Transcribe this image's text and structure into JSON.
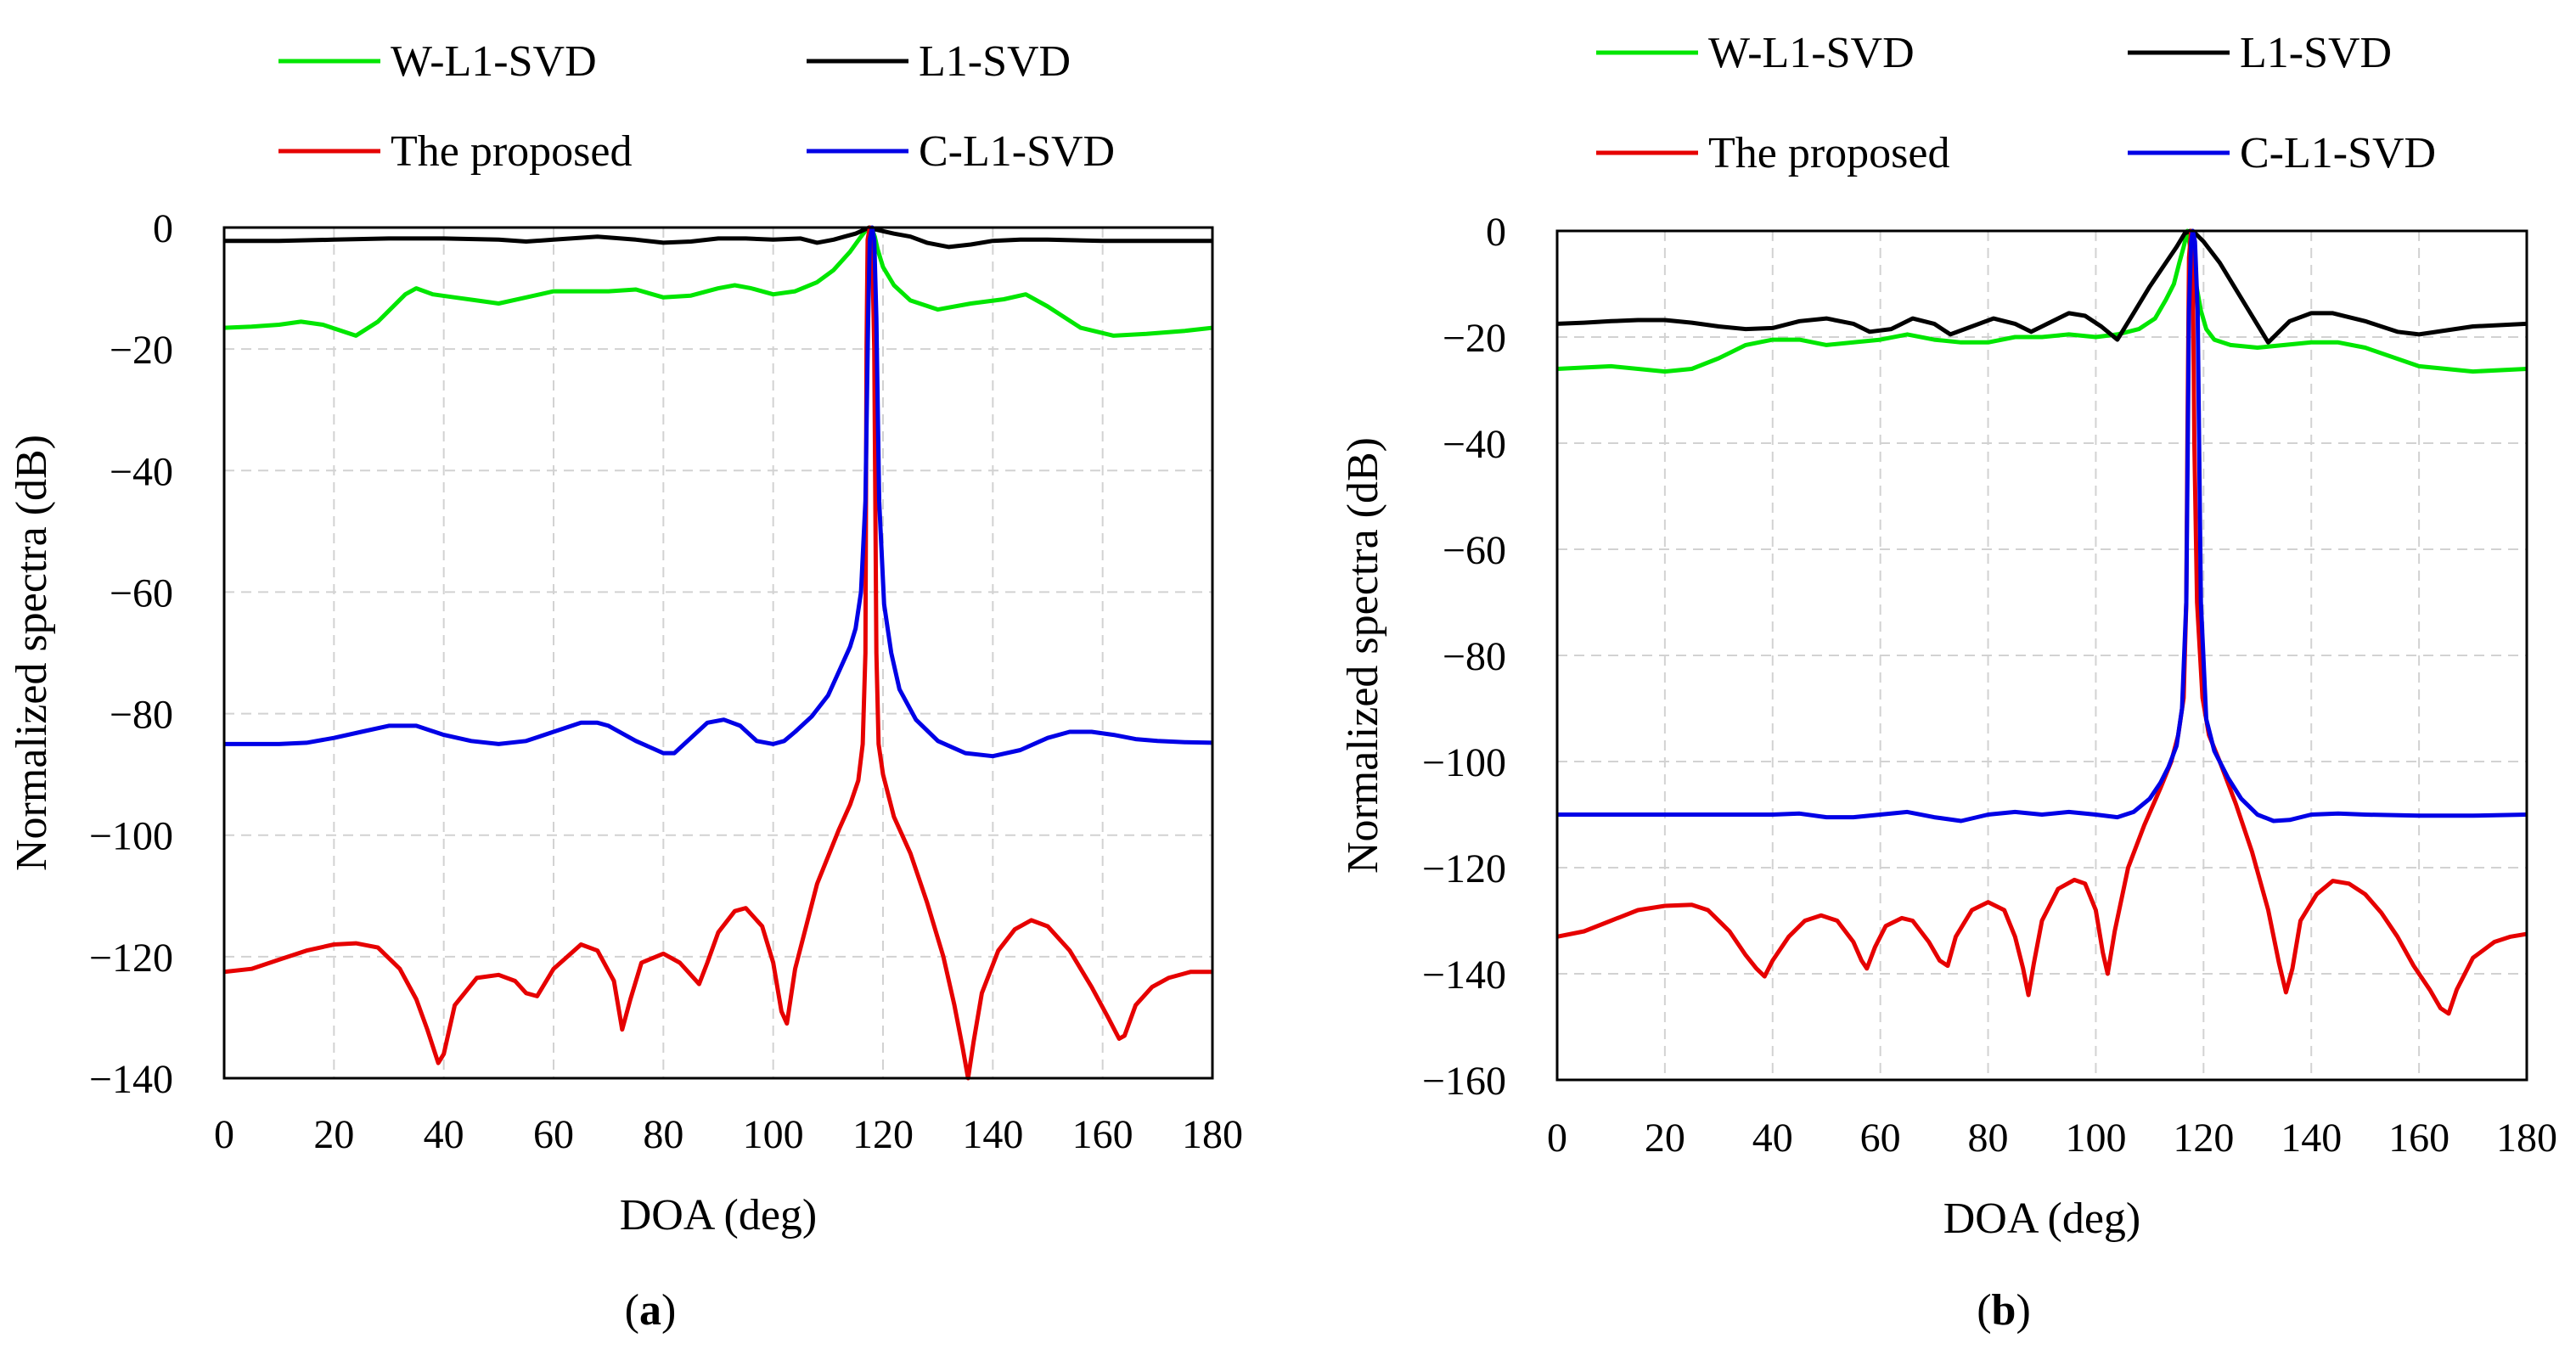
{
  "figure": {
    "colors": {
      "w_l1_svd": "#00e600",
      "l1_svd": "#000000",
      "proposed": "#e60000",
      "c_l1_svd": "#0000e6"
    }
  },
  "chart_data": [
    {
      "type": "line",
      "panel_label_open": "(",
      "panel_label_letter": "a",
      "panel_label_close": ")",
      "xlabel": "DOA (deg)",
      "ylabel": "Normalized spectra (dB)",
      "xlim": [
        0,
        180
      ],
      "ylim": [
        -140,
        0
      ],
      "x_ticks": [
        0,
        20,
        40,
        60,
        80,
        100,
        120,
        140,
        160,
        180
      ],
      "y_ticks": [
        0,
        -20,
        -40,
        -60,
        -80,
        -100,
        -120,
        -140
      ],
      "grid": true,
      "legend": [
        "W-L1-SVD",
        "L1-SVD",
        "The proposed",
        "C-L1-SVD"
      ],
      "series": [
        {
          "name": "W-L1-SVD",
          "color": "#00e600",
          "x": [
            0,
            5,
            10,
            14,
            18,
            24,
            28,
            33,
            35,
            38,
            42,
            46,
            50,
            55,
            60,
            65,
            70,
            75,
            80,
            85,
            90,
            93,
            96,
            100,
            104,
            108,
            111,
            114,
            116,
            117,
            117.5,
            118,
            118.5,
            119,
            120,
            122,
            125,
            130,
            136,
            142,
            146,
            150,
            156,
            162,
            168,
            175,
            180
          ],
          "y": [
            -16.5,
            -16.3,
            -16,
            -15.5,
            -16,
            -17.8,
            -15.5,
            -11,
            -10,
            -11,
            -11.5,
            -12,
            -12.5,
            -11.5,
            -10.5,
            -10.5,
            -10.5,
            -10.2,
            -11.5,
            -11.2,
            -10,
            -9.5,
            -10,
            -11,
            -10.5,
            -9,
            -7,
            -4,
            -1.5,
            -0.3,
            0,
            -0.3,
            -1.5,
            -3.5,
            -6.5,
            -9.5,
            -12,
            -13.5,
            -12.5,
            -11.8,
            -11,
            -13,
            -16.5,
            -17.8,
            -17.5,
            -17,
            -16.5
          ]
        },
        {
          "name": "L1-SVD",
          "color": "#000000",
          "x": [
            0,
            10,
            20,
            30,
            40,
            50,
            55,
            60,
            68,
            75,
            80,
            85,
            90,
            95,
            100,
            105,
            108,
            111,
            113,
            115,
            116.5,
            117.5,
            118.5,
            120,
            122,
            125,
            128,
            132,
            136,
            140,
            145,
            150,
            160,
            170,
            180
          ],
          "y": [
            -2.2,
            -2.2,
            -2,
            -1.8,
            -1.8,
            -2,
            -2.3,
            -2,
            -1.5,
            -2,
            -2.5,
            -2.3,
            -1.8,
            -1.8,
            -2,
            -1.8,
            -2.5,
            -2,
            -1.5,
            -1,
            -0.4,
            0,
            -0.3,
            -0.6,
            -1,
            -1.5,
            -2.5,
            -3.2,
            -2.8,
            -2.2,
            -2,
            -2,
            -2.2,
            -2.2,
            -2.2
          ]
        },
        {
          "name": "The proposed",
          "color": "#e60000",
          "x": [
            0,
            5,
            10,
            15,
            20,
            24,
            28,
            32,
            35,
            37,
            39,
            40,
            42,
            46,
            50,
            53,
            55,
            57,
            60,
            65,
            68,
            71,
            72.5,
            74,
            76,
            80,
            83,
            85,
            86.5,
            88,
            90,
            93,
            95,
            98,
            100,
            101.5,
            102.5,
            104,
            108,
            112,
            114,
            115.5,
            116.3,
            116.8,
            117,
            117.2,
            117.6,
            118,
            118.4,
            118.8,
            119.2,
            120,
            122,
            125,
            128,
            131,
            133,
            134.5,
            135.5,
            136.5,
            138,
            141,
            144,
            147,
            150,
            154,
            158,
            161,
            163,
            164,
            166,
            169,
            172,
            176,
            180
          ],
          "y": [
            -122.5,
            -122,
            -120.5,
            -119,
            -118,
            -117.8,
            -118.5,
            -122,
            -127,
            -132,
            -137.5,
            -136,
            -128,
            -123.5,
            -123,
            -124,
            -126,
            -126.5,
            -122,
            -118,
            -119,
            -124,
            -132,
            -127,
            -121,
            -119.5,
            -121,
            -123,
            -124.5,
            -121,
            -116,
            -112.5,
            -112,
            -115,
            -121,
            -129,
            -131,
            -122,
            -108,
            -99,
            -95,
            -91,
            -85,
            -70,
            -20,
            -2,
            0,
            -2,
            -20,
            -70,
            -85,
            -90,
            -97,
            -103,
            -111,
            -120,
            -128,
            -135,
            -140,
            -134,
            -126,
            -119,
            -115.5,
            -114,
            -115,
            -119,
            -125,
            -130,
            -133.5,
            -133,
            -128,
            -125,
            -123.5,
            -122.5,
            -122.5
          ]
        },
        {
          "name": "C-L1-SVD",
          "color": "#0000e6",
          "x": [
            0,
            5,
            10,
            15,
            20,
            25,
            30,
            35,
            40,
            45,
            50,
            55,
            60,
            65,
            68,
            70,
            75,
            80,
            82,
            85,
            88,
            91,
            94,
            97,
            100,
            102,
            104,
            107,
            110,
            112,
            114,
            115,
            116,
            116.8,
            117.3,
            117.6,
            118,
            118.4,
            118.8,
            119.3,
            120.2,
            121.5,
            123,
            126,
            130,
            135,
            140,
            145,
            150,
            154,
            158,
            162,
            166,
            170,
            175,
            180
          ],
          "y": [
            -85,
            -85,
            -85,
            -84.8,
            -84,
            -83,
            -82,
            -82,
            -83.5,
            -84.5,
            -85,
            -84.5,
            -83,
            -81.5,
            -81.5,
            -82,
            -84.5,
            -86.5,
            -86.5,
            -84,
            -81.5,
            -81,
            -82,
            -84.5,
            -85,
            -84.5,
            -83,
            -80.5,
            -77,
            -73,
            -69,
            -66,
            -60,
            -45,
            -15,
            -2,
            0,
            -2,
            -15,
            -45,
            -62,
            -70,
            -76,
            -81,
            -84.5,
            -86.5,
            -87,
            -86,
            -84,
            -83,
            -83,
            -83.5,
            -84.2,
            -84.5,
            -84.7,
            -84.8
          ]
        }
      ]
    },
    {
      "type": "line",
      "panel_label_open": "(",
      "panel_label_letter": "b",
      "panel_label_close": ")",
      "xlabel": "DOA (deg)",
      "ylabel": "Normalized spectra (dB)",
      "xlim": [
        0,
        180
      ],
      "ylim": [
        -160,
        0
      ],
      "x_ticks": [
        0,
        20,
        40,
        60,
        80,
        100,
        120,
        140,
        160,
        180
      ],
      "y_ticks": [
        0,
        -20,
        -40,
        -60,
        -80,
        -100,
        -120,
        -140,
        -160
      ],
      "grid": true,
      "legend": [
        "W-L1-SVD",
        "L1-SVD",
        "The proposed",
        "C-L1-SVD"
      ],
      "series": [
        {
          "name": "W-L1-SVD",
          "color": "#00e600",
          "x": [
            0,
            10,
            20,
            25,
            30,
            35,
            40,
            45,
            50,
            55,
            60,
            65,
            70,
            75,
            80,
            85,
            90,
            95,
            100,
            104,
            108,
            111,
            113,
            114.5,
            115.5,
            116.3,
            117,
            117.5,
            118,
            118.7,
            119.5,
            120.5,
            122,
            125,
            130,
            135,
            140,
            145,
            150,
            160,
            170,
            180
          ],
          "y": [
            -26,
            -25.5,
            -26.5,
            -26,
            -24,
            -21.5,
            -20.5,
            -20.5,
            -21.5,
            -21,
            -20.5,
            -19.5,
            -20.5,
            -21,
            -21,
            -20,
            -20,
            -19.5,
            -20,
            -19.5,
            -18.5,
            -16.5,
            -13,
            -10,
            -6,
            -3,
            0,
            -3,
            -6,
            -10.5,
            -15,
            -18.5,
            -20.5,
            -21.5,
            -22,
            -21.5,
            -21,
            -21,
            -22,
            -25.5,
            -26.5,
            -26
          ]
        },
        {
          "name": "L1-SVD",
          "color": "#000000",
          "x": [
            0,
            5,
            10,
            15,
            20,
            25,
            30,
            35,
            40,
            45,
            50,
            55,
            58,
            62,
            66,
            70,
            73,
            77,
            81,
            85,
            88,
            91,
            95,
            98,
            101,
            104,
            107,
            110,
            113,
            115,
            116.5,
            117.5,
            118.5,
            120,
            123,
            126,
            129,
            132,
            136,
            140,
            144,
            150,
            156,
            160,
            170,
            180
          ],
          "y": [
            -17.5,
            -17.3,
            -17,
            -16.8,
            -16.8,
            -17.3,
            -18,
            -18.5,
            -18.3,
            -17,
            -16.5,
            -17.5,
            -19,
            -18.5,
            -16.5,
            -17.5,
            -19.5,
            -18,
            -16.5,
            -17.5,
            -19,
            -17.5,
            -15.5,
            -16,
            -18,
            -20.5,
            -15.5,
            -10.5,
            -6,
            -3,
            -0.5,
            0,
            -0.5,
            -2,
            -6,
            -11,
            -16,
            -21,
            -17,
            -15.5,
            -15.5,
            -17,
            -19,
            -19.5,
            -18,
            -17.5
          ]
        },
        {
          "name": "The proposed",
          "color": "#e60000",
          "x": [
            0,
            5,
            10,
            15,
            20,
            25,
            28,
            32,
            35,
            37,
            38.5,
            40,
            43,
            46,
            49,
            52,
            55,
            56.5,
            57.5,
            59,
            61,
            64,
            66,
            69,
            71,
            72.5,
            74,
            77,
            80,
            83,
            85,
            86.5,
            87.5,
            88.5,
            90,
            93,
            96,
            98,
            100,
            101.3,
            102.2,
            103.5,
            106,
            109,
            112,
            114,
            115.3,
            116.3,
            116.8,
            117,
            117.3,
            117.7,
            118,
            118.3,
            118.8,
            119.8,
            121,
            123,
            126,
            129,
            132,
            134,
            135.3,
            136.5,
            138,
            141,
            144,
            147,
            150,
            153,
            156,
            159,
            162,
            164,
            165.5,
            167,
            170,
            174,
            177,
            180
          ],
          "y": [
            -133,
            -132,
            -130,
            -128,
            -127.2,
            -127,
            -128,
            -132,
            -136.5,
            -139,
            -140.5,
            -137.5,
            -133,
            -130,
            -129,
            -130,
            -134,
            -137.5,
            -139,
            -135,
            -131,
            -129.5,
            -130,
            -134,
            -137.5,
            -138.5,
            -133,
            -128,
            -126.5,
            -128,
            -133,
            -139,
            -144,
            -138,
            -130,
            -124,
            -122.3,
            -123,
            -128,
            -136,
            -140,
            -132,
            -120,
            -112,
            -105,
            -100,
            -95,
            -88,
            -70,
            -40,
            -5,
            0,
            -5,
            -40,
            -70,
            -88,
            -95,
            -100,
            -108,
            -117,
            -128,
            -138,
            -143.5,
            -139,
            -130,
            -125,
            -122.5,
            -123,
            -125,
            -128.5,
            -133,
            -138.5,
            -143,
            -146.5,
            -147.5,
            -143,
            -137,
            -134,
            -133,
            -132.5
          ]
        },
        {
          "name": "C-L1-SVD",
          "color": "#0000e6",
          "x": [
            0,
            10,
            20,
            30,
            40,
            45,
            50,
            55,
            60,
            65,
            70,
            75,
            80,
            85,
            90,
            95,
            100,
            104,
            107,
            110,
            112,
            113.5,
            115,
            116,
            116.8,
            117.3,
            117.7,
            118,
            118.4,
            118.9,
            119.5,
            120.5,
            122,
            124.5,
            127,
            130,
            133,
            136,
            140,
            145,
            150,
            160,
            170,
            180
          ],
          "y": [
            -110,
            -110,
            -110,
            -110,
            -110,
            -109.8,
            -110.5,
            -110.5,
            -110,
            -109.5,
            -110.5,
            -111.2,
            -110,
            -109.5,
            -110,
            -109.5,
            -110,
            -110.5,
            -109.5,
            -107,
            -104,
            -101,
            -97,
            -90,
            -70,
            -15,
            -2,
            0,
            -2,
            -15,
            -70,
            -92,
            -98,
            -103,
            -107,
            -110,
            -111.2,
            -111,
            -110,
            -109.8,
            -110,
            -110.2,
            -110.2,
            -110
          ]
        }
      ]
    }
  ]
}
